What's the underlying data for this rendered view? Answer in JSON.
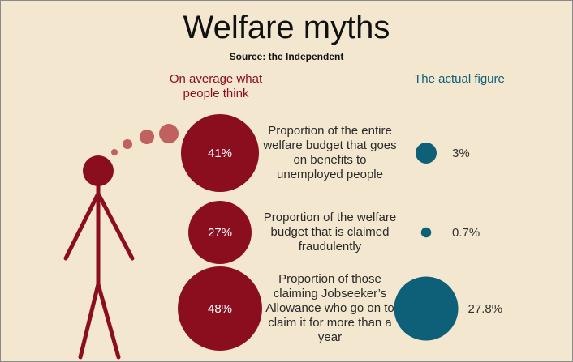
{
  "chart_data": {
    "type": "bubble",
    "title": "Welfare myths",
    "subtitle": "Source: the Independent",
    "categories": [
      "Proportion of the entire welfare budget that goes on benefits to unemployed people",
      "Proportion of the welfare budget that is claimed fraudulently",
      "Proportion of those claiming Jobseeker’s Allowance who go on to claim it for more than a year"
    ],
    "series": [
      {
        "name": "On average what people think",
        "color": "#8b0e1f",
        "values": [
          41,
          27,
          48
        ],
        "value_labels": [
          "41%",
          "27%",
          "48%"
        ]
      },
      {
        "name": "The actual figure",
        "color": "#0e5f78",
        "values": [
          3,
          0.7,
          27.8
        ],
        "value_labels": [
          "3%",
          "0.7%",
          "27.8%"
        ]
      }
    ]
  }
}
